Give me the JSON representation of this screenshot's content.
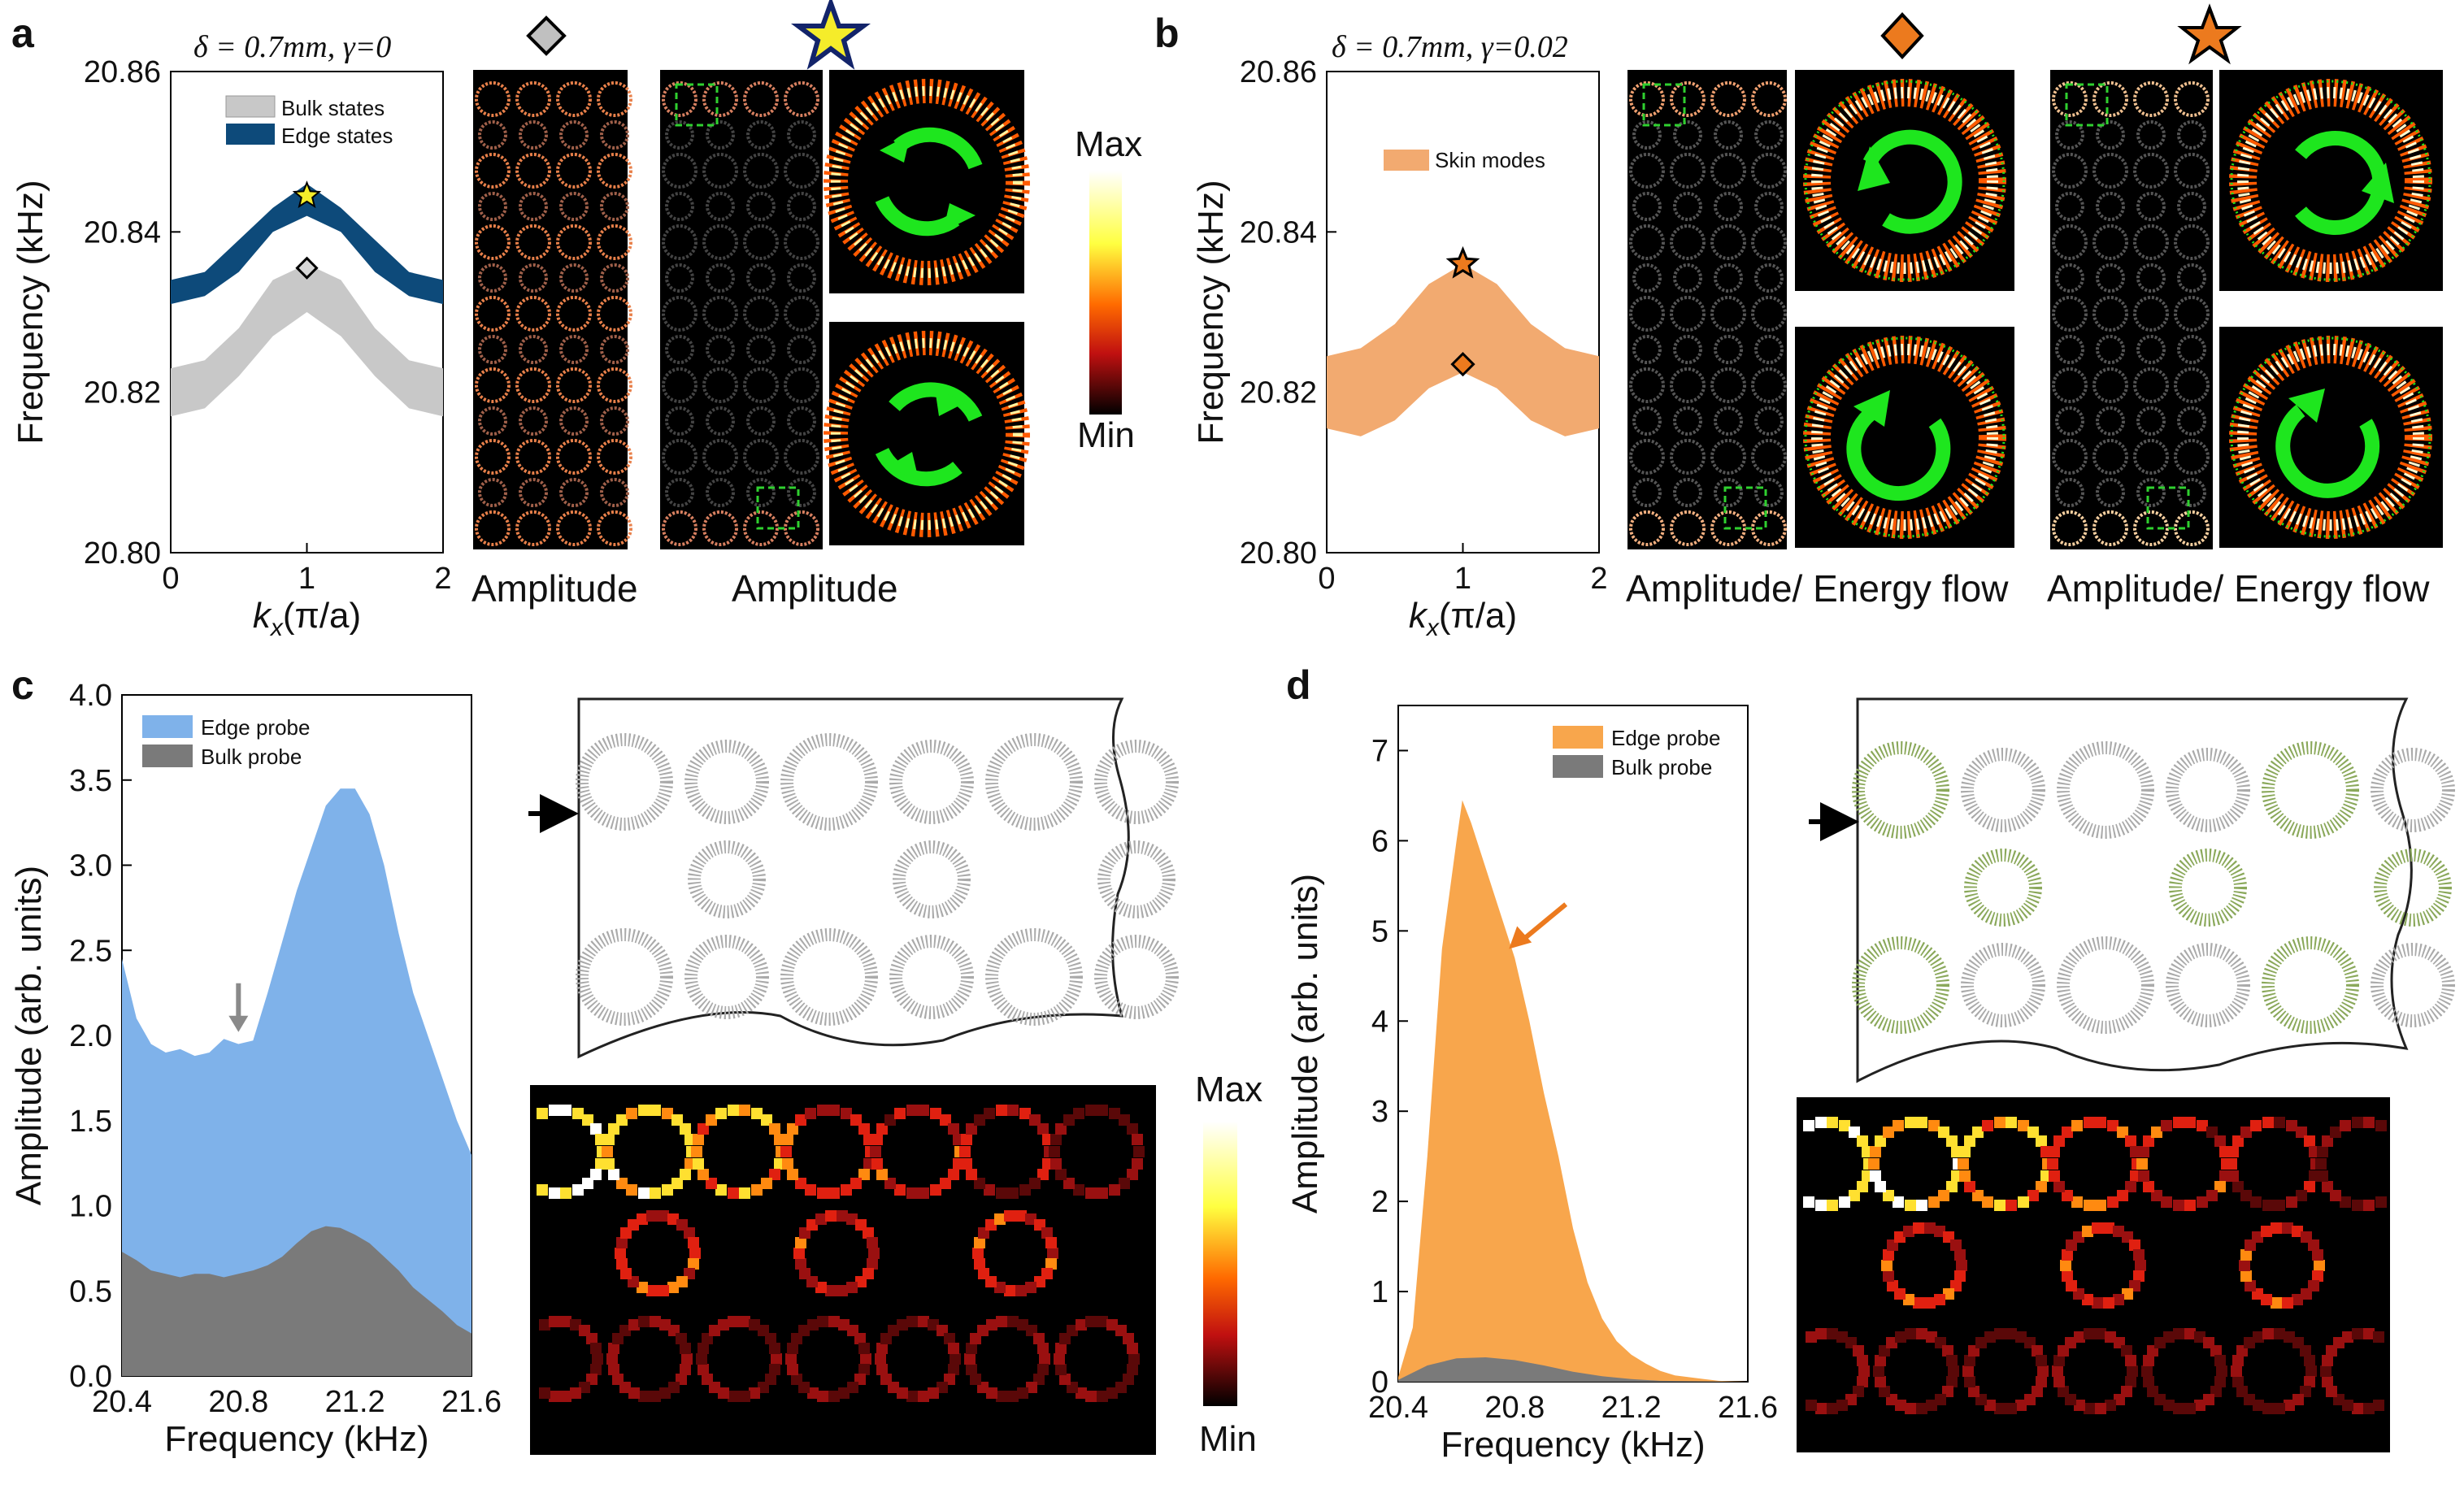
{
  "panels": {
    "a": {
      "label": "a",
      "param": "δ = 0.7mm,  γ=0",
      "caption1": "Amplitude",
      "caption2": "Amplitude",
      "colorbar_max": "Max",
      "colorbar_min": "Min"
    },
    "b": {
      "label": "b",
      "param": "δ = 0.7mm,  γ=0.02",
      "caption1": "Amplitude/ Energy flow",
      "caption2": "Amplitude/ Energy flow"
    },
    "c": {
      "label": "c",
      "colorbar_max": "Max",
      "colorbar_min": "Min"
    },
    "d": {
      "label": "d"
    }
  },
  "colors": {
    "bulk_band": "#c8c8c8",
    "edge_band": "#0d4a7a",
    "skin_band": "#f2aa70",
    "edge_probe_blue": "#7fb2ea",
    "bulk_probe_grey": "#7a7a7a",
    "edge_probe_orange": "#f8a64c",
    "marker_star": "#f5ec2a",
    "marker_orange": "#ec7a1e",
    "green": "#1ee61e"
  },
  "chart_data": [
    {
      "id": "a-band",
      "type": "area",
      "xlabel": "kx(π/a)",
      "ylabel": "Frequency (kHz)",
      "xlim": [
        0,
        2
      ],
      "ylim": [
        20.8,
        20.86
      ],
      "xticks": [
        "0",
        "1",
        "2"
      ],
      "yticks": [
        "20.80",
        "20.82",
        "20.84",
        "20.86"
      ],
      "legend": [
        "Bulk states",
        "Edge states"
      ],
      "legend_position": "top-right",
      "series": [
        {
          "name": "Bulk states",
          "x": [
            0,
            0.25,
            0.5,
            0.75,
            1,
            1.25,
            1.5,
            1.75,
            2
          ],
          "lower": [
            20.817,
            20.818,
            20.822,
            20.827,
            20.83,
            20.827,
            20.822,
            20.818,
            20.817
          ],
          "upper": [
            20.823,
            20.824,
            20.828,
            20.834,
            20.836,
            20.834,
            20.828,
            20.824,
            20.823
          ]
        },
        {
          "name": "Edge states",
          "x": [
            0,
            0.25,
            0.5,
            0.75,
            1,
            1.25,
            1.5,
            1.75,
            2
          ],
          "lower": [
            20.831,
            20.832,
            20.835,
            20.84,
            20.842,
            20.84,
            20.835,
            20.832,
            20.831
          ],
          "upper": [
            20.834,
            20.835,
            20.839,
            20.843,
            20.846,
            20.843,
            20.839,
            20.835,
            20.834
          ]
        }
      ],
      "markers": [
        {
          "shape": "star",
          "x": 1,
          "y": 20.8445
        },
        {
          "shape": "diamond",
          "x": 1,
          "y": 20.8355
        }
      ]
    },
    {
      "id": "b-band",
      "type": "area",
      "xlabel": "kx(π/a)",
      "ylabel": "Frequency (kHz)",
      "xlim": [
        0,
        2
      ],
      "ylim": [
        20.8,
        20.86
      ],
      "xticks": [
        "0",
        "1",
        "2"
      ],
      "yticks": [
        "20.80",
        "20.82",
        "20.84",
        "20.86"
      ],
      "legend": [
        "Skin modes"
      ],
      "legend_position": "top-right",
      "series": [
        {
          "name": "Skin modes",
          "x": [
            0,
            0.25,
            0.5,
            0.75,
            1,
            1.25,
            1.5,
            1.75,
            2
          ],
          "lower": [
            20.8155,
            20.8145,
            20.8165,
            20.8205,
            20.8225,
            20.8205,
            20.8165,
            20.8145,
            20.8155
          ],
          "upper": [
            20.8245,
            20.8255,
            20.8285,
            20.8335,
            20.836,
            20.8335,
            20.8285,
            20.8255,
            20.8245
          ]
        }
      ],
      "markers": [
        {
          "shape": "star",
          "x": 1,
          "y": 20.836
        },
        {
          "shape": "diamond",
          "x": 1,
          "y": 20.8235
        }
      ]
    },
    {
      "id": "c-spectrum",
      "type": "area",
      "xlabel": "Frequency (kHz)",
      "ylabel": "Amplitude (arb. units)",
      "xlim": [
        20.4,
        21.6
      ],
      "ylim": [
        0,
        4.0
      ],
      "xticks": [
        "20.4",
        "20.8",
        "21.2",
        "21.6"
      ],
      "yticks": [
        "0.0",
        "0.5",
        "1.0",
        "1.5",
        "2.0",
        "2.5",
        "3.0",
        "3.5",
        "4.0"
      ],
      "legend_position": "top-left",
      "series": [
        {
          "name": "Edge probe",
          "x": [
            20.4,
            20.45,
            20.5,
            20.55,
            20.6,
            20.65,
            20.7,
            20.75,
            20.8,
            20.85,
            20.9,
            20.95,
            21.0,
            21.05,
            21.1,
            21.15,
            21.2,
            21.25,
            21.3,
            21.35,
            21.4,
            21.45,
            21.5,
            21.55,
            21.6
          ],
          "values": [
            2.45,
            2.1,
            1.95,
            1.9,
            1.92,
            1.88,
            1.9,
            1.98,
            1.95,
            1.97,
            2.25,
            2.55,
            2.85,
            3.1,
            3.35,
            3.45,
            3.45,
            3.3,
            3.0,
            2.6,
            2.25,
            2.0,
            1.75,
            1.5,
            1.3
          ]
        },
        {
          "name": "Bulk probe",
          "x": [
            20.4,
            20.45,
            20.5,
            20.55,
            20.6,
            20.65,
            20.7,
            20.75,
            20.8,
            20.85,
            20.9,
            20.95,
            21.0,
            21.05,
            21.1,
            21.15,
            21.2,
            21.25,
            21.3,
            21.35,
            21.4,
            21.45,
            21.5,
            21.55,
            21.6
          ],
          "values": [
            0.73,
            0.68,
            0.62,
            0.6,
            0.58,
            0.6,
            0.6,
            0.58,
            0.6,
            0.62,
            0.65,
            0.7,
            0.78,
            0.85,
            0.88,
            0.87,
            0.83,
            0.78,
            0.7,
            0.62,
            0.52,
            0.45,
            0.38,
            0.3,
            0.25
          ]
        }
      ],
      "annotations": [
        {
          "type": "arrow",
          "x": 20.8,
          "y_tip": 2.02,
          "color": "grey"
        }
      ]
    },
    {
      "id": "d-spectrum",
      "type": "area",
      "xlabel": "Frequency (kHz)",
      "ylabel": "Amplitude (arb. units)",
      "xlim": [
        20.4,
        21.6
      ],
      "ylim": [
        0,
        7.5
      ],
      "xticks": [
        "20.4",
        "20.8",
        "21.2",
        "21.6"
      ],
      "yticks": [
        "0",
        "1",
        "2",
        "3",
        "4",
        "5",
        "6",
        "7"
      ],
      "legend_position": "top-right",
      "series": [
        {
          "name": "Edge probe",
          "x": [
            20.4,
            20.45,
            20.5,
            20.55,
            20.6,
            20.62,
            20.65,
            20.7,
            20.75,
            20.8,
            20.85,
            20.9,
            20.95,
            21.0,
            21.05,
            21.1,
            21.15,
            21.2,
            21.25,
            21.3,
            21.35,
            21.4,
            21.45,
            21.5,
            21.6
          ],
          "values": [
            0.05,
            0.6,
            2.5,
            4.8,
            6.0,
            6.45,
            6.2,
            5.7,
            5.2,
            4.7,
            4.0,
            3.2,
            2.5,
            1.7,
            1.1,
            0.7,
            0.45,
            0.3,
            0.2,
            0.12,
            0.07,
            0.05,
            0.03,
            0.01,
            0.0
          ]
        },
        {
          "name": "Bulk probe",
          "x": [
            20.4,
            20.5,
            20.6,
            20.7,
            20.8,
            20.9,
            21.0,
            21.1,
            21.2,
            21.3,
            21.6
          ],
          "values": [
            0.02,
            0.18,
            0.26,
            0.27,
            0.24,
            0.18,
            0.11,
            0.06,
            0.03,
            0.01,
            0.0
          ]
        }
      ],
      "annotations": [
        {
          "type": "arrow",
          "x": 20.78,
          "y_tip": 4.8,
          "color": "orange"
        }
      ]
    }
  ]
}
